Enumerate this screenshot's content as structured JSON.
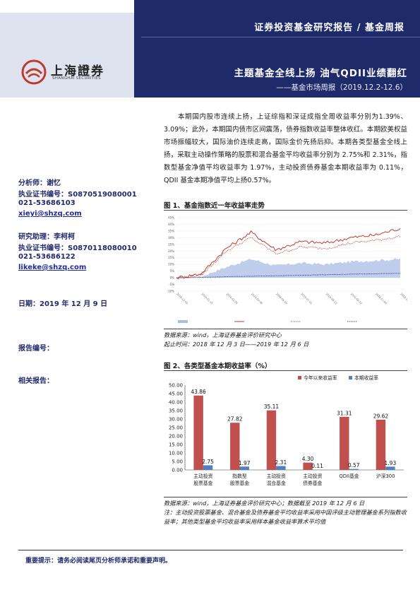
{
  "header": {
    "report_type": "证券投资基金研究报告 / 基金周报",
    "logo_cn": "上海證券",
    "logo_en": "SHANGHAI SECURITIES",
    "title": "主题基金全线上扬 油气QDII业绩翻红",
    "subtitle": "——基金市场周报（2019.12.2-12.6）"
  },
  "brand_colors": {
    "navy": "#1f2a6b",
    "red": "#c0392b",
    "blue": "#3a6fbf"
  },
  "analysts": {
    "analyst_label": "分析师：谢忆",
    "analyst_cert": "执业证书编号：S0870519080001",
    "analyst_phone": "021-53686103",
    "analyst_email": "xieyi@shzq.com",
    "assistant_label": "研究助理：李柯柯",
    "assistant_cert": "执业证书编号：S0870118080010",
    "assistant_phone": "021-53686122",
    "assistant_email": "likeke@shzq.com"
  },
  "meta": {
    "date_line": "日期：2019 年 12 月 9 日",
    "report_no": "报告编号：",
    "related": "相关报告："
  },
  "summary": "本期国内股市连续上扬，上证综指和深证成指全周收益率分别为1.39%、3.09%；此外，本期国内债市区间震荡，债券指数收益率整体收红。本期欧美权益市场振幅较大，国际油价连续走高，国际金价先扬后抑。本期各类型基金全线上扬，采取主动操作策略的股票和混合基金平均收益率分别为 2.75%和 2.31%，指数型基金净值平均收益率为 1.97%，主动投资债券基金本期收益率为 0.11%，QDII 基金本期净值平均上扬0.57%。",
  "figure1": {
    "caption": "图 1、基金指数近一年收益率走势",
    "source": "数据来源：wind，上海证券基金评价研究中心",
    "period": "起止时间：2018 年 12 月 3 日——2019 年 12 月 6 日"
  },
  "figure2": {
    "caption": "图 2、各类型基金本期收益率（%）",
    "source": "数据来源：wind，上海证券基金评价研究中心；数据截至 2019 年 12 月 6 日",
    "note": "注：主动投资股票基金、混合基金及债券基金平均收益率采用中国评级主动管理基金系列指数收益率；其他类型基金平均收益率采用样本基金收益率算术平均值"
  },
  "footer": {
    "notice": "重要提示：请务必阅读尾页分析师承诺和重要声明。"
  },
  "chart_data": [
    {
      "type": "line",
      "title": "",
      "y_ticks": [
        "45%",
        "40%",
        "35%",
        "30%",
        "25%",
        "20%",
        "15%",
        "10%",
        "5%",
        "0%",
        "-5%",
        "-10%"
      ],
      "ylim": [
        -10,
        45
      ],
      "x": [
        "2018-12-03",
        "2019-01-15",
        "2019-02-25",
        "2019-04-08",
        "2019-05-20",
        "2019-07-01",
        "2019-08-12",
        "2019-09-23",
        "2019-11-04",
        "2019-12-06"
      ],
      "series": [
        {
          "name": "",
          "style": "area",
          "color": "#a9bde6",
          "values": [
            0,
            1,
            8,
            14,
            9,
            11,
            10,
            12,
            13,
            14
          ]
        },
        {
          "name": "",
          "style": "solid",
          "color": "#c0392b",
          "values": [
            0,
            3,
            22,
            34,
            21,
            27,
            26,
            30,
            32,
            37
          ]
        },
        {
          "name": "",
          "style": "dotted",
          "color": "#c0392b",
          "values": [
            0,
            2,
            20,
            30,
            18,
            23,
            22,
            26,
            28,
            31
          ]
        },
        {
          "name": "",
          "style": "dotted",
          "color": "#1f2a6b",
          "values": [
            0,
            0.3,
            0.8,
            1.2,
            1.5,
            1.9,
            2.3,
            2.7,
            3.0,
            3.3
          ]
        }
      ]
    },
    {
      "type": "bar",
      "categories": [
        "主动投资股票基金",
        "指数型股票基金",
        "主动投资混合基金",
        "主动投资债券基金",
        "QDII基金",
        "沪深300"
      ],
      "category_lines": [
        [
          "主动投资",
          "股票基金"
        ],
        [
          "指数型",
          "股票基金"
        ],
        [
          "主动投资",
          "混合基金"
        ],
        [
          "主动投资",
          "债券基金"
        ],
        [
          "QDII基金",
          ""
        ],
        [
          "沪深300",
          ""
        ]
      ],
      "series": [
        {
          "name": "今年以来收益率",
          "color": "#c0504d",
          "values": [
            43.86,
            27.82,
            35.11,
            4.3,
            31.31,
            29.62
          ]
        },
        {
          "name": "本期收益率",
          "color": "#4f81bd",
          "values": [
            2.75,
            1.97,
            2.31,
            0.11,
            0.57,
            1.93
          ]
        }
      ],
      "ylim": [
        0,
        50
      ],
      "y_ticks": [
        "50.00",
        "45.00",
        "40.00",
        "35.00",
        "30.00",
        "25.00",
        "20.00",
        "15.00",
        "10.00",
        "5.00",
        "0.00"
      ],
      "legend_position": "top-right"
    }
  ]
}
